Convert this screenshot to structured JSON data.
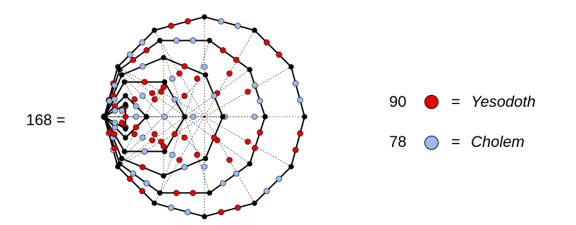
{
  "equation_label": "168 =",
  "legend": [
    {
      "count": "90",
      "eq": "=",
      "name": "Yesodoth",
      "color": "#e60000"
    },
    {
      "count": "78",
      "eq": "=",
      "name": "Cholem",
      "color": "#99bbee"
    }
  ],
  "colors": {
    "red_dot": "#e60000",
    "blue_dot": "#99bbee",
    "black_node": "#000000"
  }
}
